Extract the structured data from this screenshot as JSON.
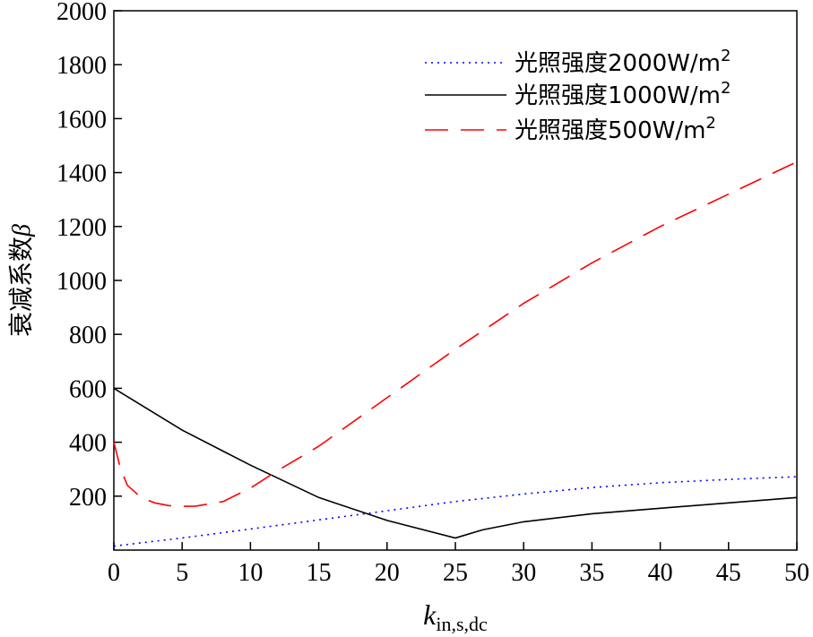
{
  "chart_data": {
    "type": "line",
    "title": "",
    "ylabel_text": "衰减系数",
    "ylabel_symbol": "β",
    "xlabel_main": "k",
    "xlabel_sub": "in,s,dc",
    "xlim": [
      0,
      50
    ],
    "ylim": [
      0,
      2000
    ],
    "xticks": [
      0,
      5,
      10,
      15,
      20,
      25,
      30,
      35,
      40,
      45,
      50
    ],
    "yticks": [
      200,
      400,
      600,
      800,
      1000,
      1200,
      1400,
      1600,
      1800,
      2000
    ],
    "grid": false,
    "legend_position": "top-right",
    "series": [
      {
        "name_prefix": "光照强度2000W/m",
        "name_sup": "2",
        "color": "#0000ff",
        "style": "dotted",
        "x": [
          0,
          5,
          10,
          15,
          20,
          25,
          30,
          35,
          40,
          45,
          50
        ],
        "y": [
          15,
          45,
          78,
          112,
          146,
          180,
          208,
          232,
          250,
          262,
          272
        ]
      },
      {
        "name_prefix": "光照强度1000W/m",
        "name_sup": "2",
        "color": "#000000",
        "style": "solid",
        "x": [
          0,
          5,
          10,
          15,
          20,
          25,
          27,
          30,
          35,
          40,
          45,
          50
        ],
        "y": [
          600,
          445,
          315,
          195,
          110,
          45,
          75,
          105,
          135,
          155,
          175,
          195
        ]
      },
      {
        "name_prefix": "光照强度500W/m",
        "name_sup": "2",
        "color": "#ff0000",
        "style": "dashed",
        "x": [
          0,
          0.5,
          1,
          2,
          3,
          4,
          5,
          6,
          8,
          10,
          12,
          15,
          20,
          25,
          30,
          35,
          40,
          45,
          50
        ],
        "y": [
          400,
          300,
          240,
          195,
          175,
          165,
          162,
          163,
          180,
          230,
          295,
          385,
          565,
          745,
          915,
          1065,
          1200,
          1320,
          1440
        ]
      }
    ]
  }
}
